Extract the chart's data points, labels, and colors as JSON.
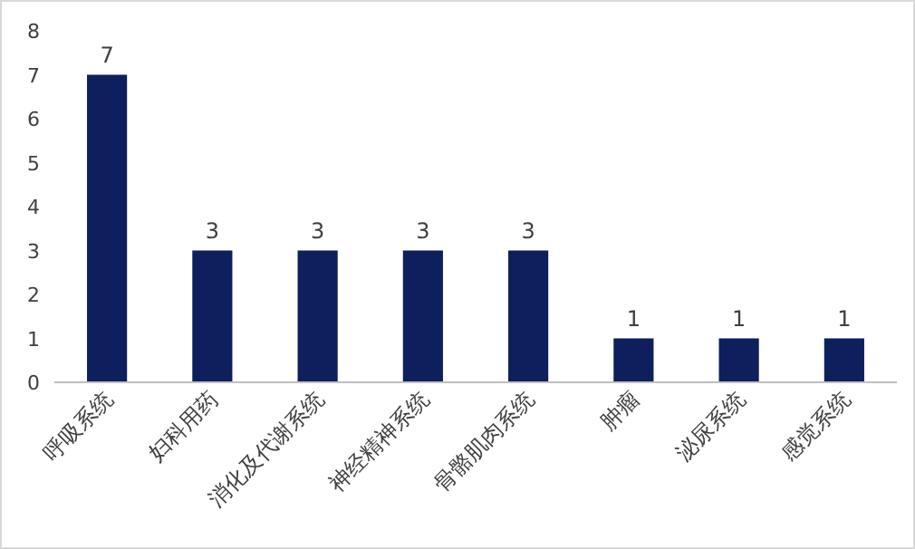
{
  "chart_data": {
    "type": "bar",
    "categories": [
      "呼吸系统",
      "妇科用药",
      "消化及代谢系统",
      "神经精神系统",
      "骨骼肌肉系统",
      "肿瘤",
      "泌尿系统",
      "感觉系统"
    ],
    "values": [
      7,
      3,
      3,
      3,
      3,
      1,
      1,
      1
    ],
    "color": "#0d1f5c",
    "ylim": [
      0,
      8
    ],
    "yticks": [
      0,
      1,
      2,
      3,
      4,
      5,
      6,
      7,
      8
    ],
    "data_labels": true,
    "grid": false
  }
}
